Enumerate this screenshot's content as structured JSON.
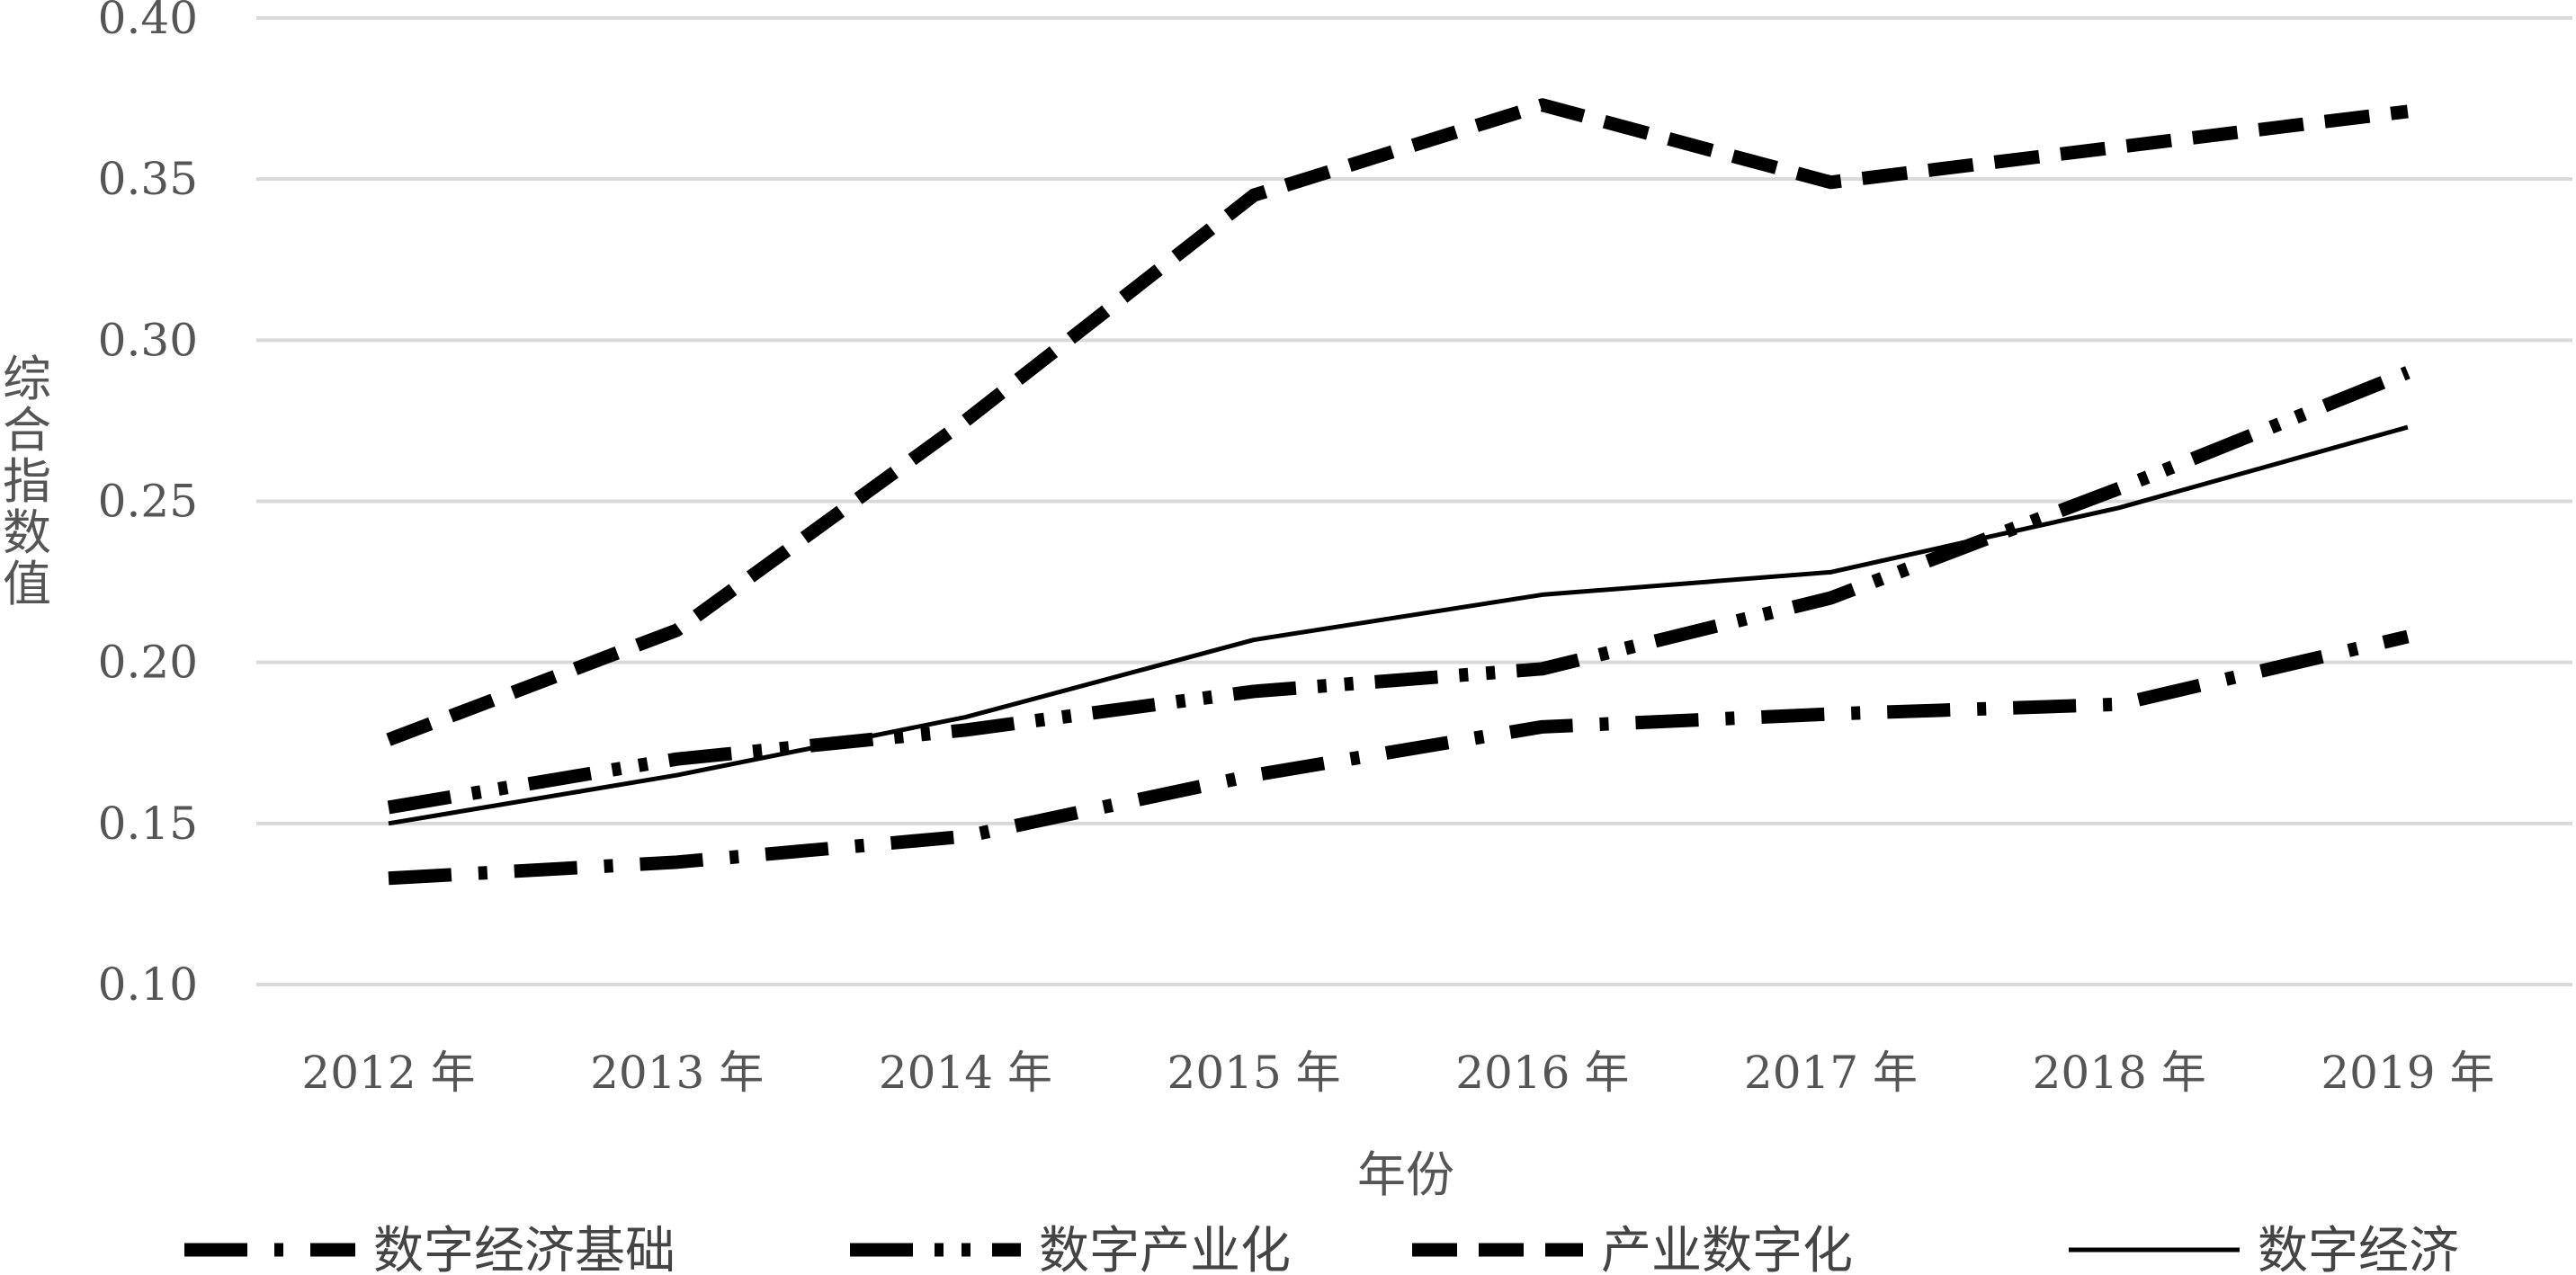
{
  "chart_data": {
    "type": "line",
    "title": "",
    "xlabel": "年份",
    "ylabel": "综合指数值",
    "categories": [
      "2012 年",
      "2013 年",
      "2014 年",
      "2015 年",
      "2016 年",
      "2017 年",
      "2018 年",
      "2019 年"
    ],
    "ylim": [
      0.1,
      0.4
    ],
    "yticks": [
      "0.10",
      "0.15",
      "0.20",
      "0.25",
      "0.30",
      "0.35",
      "0.40"
    ],
    "grid": true,
    "legend_position": "bottom",
    "series": [
      {
        "name": "数字经济基础",
        "style": "long-dash-dot",
        "color": "#000000",
        "values": [
          0.133,
          0.138,
          0.146,
          0.165,
          0.18,
          0.184,
          0.187,
          0.208
        ]
      },
      {
        "name": "数字产业化",
        "style": "long-dash-dot-dot",
        "color": "#000000",
        "values": [
          0.155,
          0.17,
          0.179,
          0.191,
          0.198,
          0.22,
          0.254,
          0.29
        ]
      },
      {
        "name": "产业数字化",
        "style": "dash",
        "color": "#000000",
        "values": [
          0.176,
          0.21,
          0.275,
          0.345,
          0.373,
          0.349,
          0.36,
          0.371
        ]
      },
      {
        "name": "数字经济",
        "style": "solid",
        "color": "#000000",
        "values": [
          0.15,
          0.165,
          0.183,
          0.207,
          0.221,
          0.228,
          0.248,
          0.273
        ]
      }
    ]
  }
}
